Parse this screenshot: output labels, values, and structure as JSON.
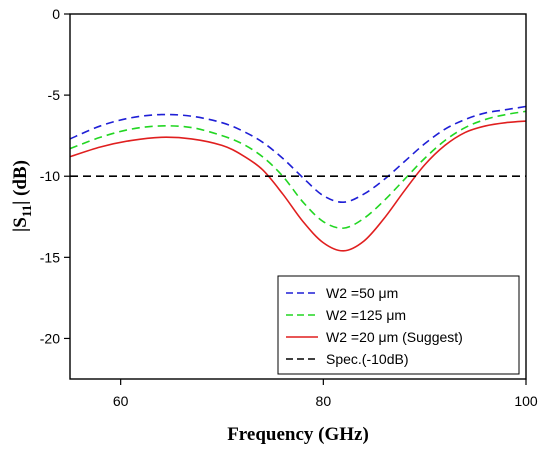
{
  "chart_data": {
    "type": "line",
    "xlabel": "Frequency (GHz)",
    "ylabel": {
      "prefix": "|S",
      "subscript": "11",
      "suffix": "|  (dB)"
    },
    "xlim": [
      55,
      100
    ],
    "ylim": [
      -22.5,
      0
    ],
    "x_ticks": [
      60,
      80,
      100
    ],
    "x_tick_labels": [
      "60",
      "80",
      "100"
    ],
    "y_ticks": [
      0,
      -5,
      -10,
      -15,
      -20
    ],
    "y_tick_labels": [
      "0",
      "-5",
      "-10",
      "-15",
      "-20"
    ],
    "grid": false,
    "legend_position": "bottom-right",
    "series": [
      {
        "name": "W2 =50 μm",
        "color": "#1f1fd6",
        "dash": "dashed",
        "x": [
          55,
          58,
          61,
          64,
          67,
          70,
          72,
          74,
          76,
          78,
          80,
          82,
          84,
          86,
          88,
          90,
          92,
          94,
          96,
          98,
          100
        ],
        "y": [
          -7.7,
          -6.9,
          -6.4,
          -6.2,
          -6.3,
          -6.7,
          -7.2,
          -7.9,
          -8.9,
          -10.1,
          -11.2,
          -11.6,
          -11.1,
          -10.2,
          -9.1,
          -8.0,
          -7.1,
          -6.5,
          -6.1,
          -5.9,
          -5.7
        ]
      },
      {
        "name": "W2 =125 μm",
        "color": "#22d622",
        "dash": "dashed",
        "x": [
          55,
          58,
          61,
          64,
          67,
          70,
          72,
          74,
          76,
          78,
          80,
          82,
          84,
          86,
          88,
          90,
          92,
          94,
          96,
          98,
          100
        ],
        "y": [
          -8.3,
          -7.6,
          -7.1,
          -6.9,
          -7.0,
          -7.5,
          -8.0,
          -8.8,
          -10.0,
          -11.6,
          -12.8,
          -13.2,
          -12.6,
          -11.5,
          -10.2,
          -8.9,
          -7.8,
          -7.0,
          -6.5,
          -6.2,
          -6.0
        ]
      },
      {
        "name": "W2 =20 μm (Suggest)",
        "color": "#e01f1f",
        "dash": "solid",
        "x": [
          55,
          58,
          61,
          64,
          67,
          70,
          72,
          74,
          76,
          78,
          80,
          82,
          84,
          86,
          88,
          90,
          92,
          94,
          96,
          98,
          100
        ],
        "y": [
          -8.8,
          -8.2,
          -7.8,
          -7.6,
          -7.7,
          -8.1,
          -8.7,
          -9.6,
          -11.1,
          -12.8,
          -14.1,
          -14.6,
          -14.0,
          -12.6,
          -10.9,
          -9.3,
          -8.1,
          -7.3,
          -6.9,
          -6.7,
          -6.6
        ]
      },
      {
        "name": "Spec.(-10dB)",
        "color": "#000000",
        "dash": "dashed",
        "x": [
          55,
          100
        ],
        "y": [
          -10,
          -10
        ]
      }
    ]
  }
}
